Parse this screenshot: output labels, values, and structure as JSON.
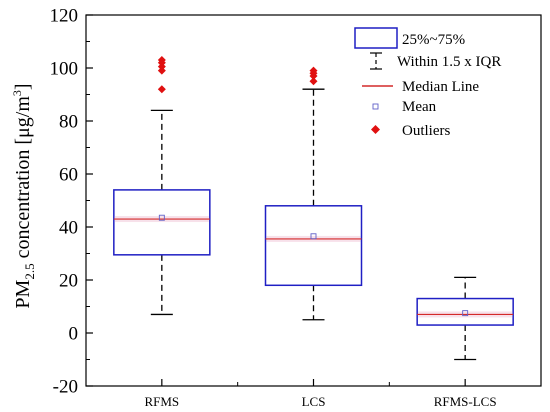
{
  "chart_data": {
    "type": "box",
    "y_axis": {
      "label_parts": [
        "PM",
        "2.5",
        " concentration [",
        "μg/m",
        "3",
        "]"
      ],
      "range": [
        -20,
        120
      ],
      "major_ticks": [
        -20,
        0,
        20,
        40,
        60,
        80,
        100,
        120
      ],
      "minor_ticks": [
        -10,
        10,
        30,
        50,
        70,
        90,
        110
      ]
    },
    "categories": [
      "RFMS",
      "LCS",
      "RFMS-LCS"
    ],
    "boxes": [
      {
        "category": "RFMS",
        "q1": 29.5,
        "median": 43,
        "q3": 54,
        "mean": 43.5,
        "whisker_low": 7,
        "whisker_high": 84,
        "outliers": [
          92,
          99,
          100.5,
          102,
          103
        ]
      },
      {
        "category": "LCS",
        "q1": 18,
        "median": 35.5,
        "q3": 48,
        "mean": 36.5,
        "whisker_low": 5,
        "whisker_high": 92,
        "outliers": [
          95,
          97,
          98,
          99
        ]
      },
      {
        "category": "RFMS-LCS",
        "q1": 3,
        "median": 7,
        "q3": 13,
        "mean": 7.5,
        "whisker_low": -10,
        "whisker_high": 21,
        "outliers": []
      }
    ],
    "legend": {
      "position": "top-right",
      "items": [
        "25%~75%",
        "Within 1.5 x IQR",
        "Median Line",
        "Mean",
        "Outliers"
      ]
    },
    "colors": {
      "box_edge": "#1f1fc4",
      "median": "#d42a2a",
      "mean": "#6060c8",
      "outlier": "#e01010",
      "whisker": "#000000",
      "band": "#f7e1ea"
    }
  }
}
